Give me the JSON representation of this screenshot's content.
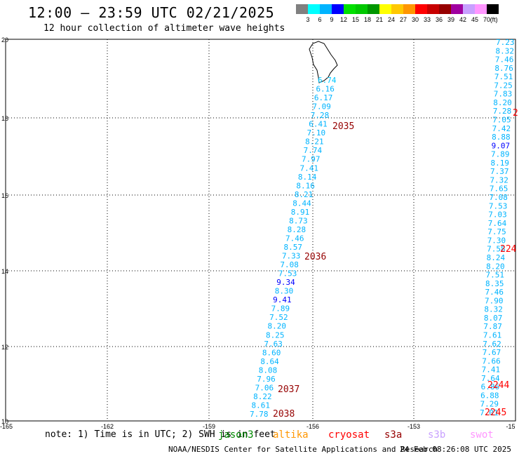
{
  "header": {
    "title": "12:00 – 23:59 UTC 02/21/2025",
    "subtitle": "12 hour collection of altimeter wave heights"
  },
  "colorbar": {
    "labels": [
      "3",
      "6",
      "9",
      "12",
      "15",
      "18",
      "21",
      "24",
      "27",
      "30",
      "33",
      "36",
      "39",
      "42",
      "45",
      "70"
    ],
    "unit": "(ft)",
    "colors": [
      "#808080",
      "#00ffff",
      "#00b4ff",
      "#0000ff",
      "#00e000",
      "#00c800",
      "#009600",
      "#ffff00",
      "#ffc800",
      "#ff9600",
      "#ff0000",
      "#c80000",
      "#960000",
      "#a000a0",
      "#c8a0ff",
      "#ff96ff",
      "#000000"
    ]
  },
  "axes": {
    "y_ticks": [
      "20",
      "18",
      "16",
      "14",
      "12",
      "10"
    ],
    "x_ticks": [
      "-165",
      "-162",
      "-159",
      "-156",
      "-153",
      "-15"
    ]
  },
  "tracks": [
    {
      "values": [
        "6.74",
        "6.16",
        "6.17",
        "7.09",
        "7.28",
        "6.41",
        "7.10",
        "8.21",
        "7.74",
        "7.97",
        "7.41",
        "8.14",
        "8.16",
        "8.21",
        "8.44",
        "8.91",
        "8.73",
        "8.28",
        "7.46",
        "8.57",
        "7.33",
        "7.08",
        "7.53",
        "9.34",
        "8.30",
        "9.41",
        "7.89",
        "7.52",
        "8.20",
        "8.25",
        "7.63",
        "8.60",
        "8.64",
        "8.08",
        "7.96",
        "7.06",
        "8.22",
        "8.61",
        "7.78"
      ],
      "colors": [
        "#00c8ff",
        "#00b4ff",
        "#00b4ff",
        "#00b4ff",
        "#00b4ff",
        "#00b4ff",
        "#00b4ff",
        "#00b4ff",
        "#00b4ff",
        "#00b4ff",
        "#00b4ff",
        "#00b4ff",
        "#00b4ff",
        "#00b4ff",
        "#00b4ff",
        "#00b4ff",
        "#00b4ff",
        "#00b4ff",
        "#00b4ff",
        "#00b4ff",
        "#00b4ff",
        "#00b4ff",
        "#00b4ff",
        "#0000ff",
        "#00b4ff",
        "#0000ff",
        "#00b4ff",
        "#00b4ff",
        "#00b4ff",
        "#00b4ff",
        "#00b4ff",
        "#00b4ff",
        "#00b4ff",
        "#00b4ff",
        "#00b4ff",
        "#00b4ff",
        "#00b4ff",
        "#00b4ff",
        "#00b4ff"
      ]
    },
    {
      "values": [
        "7.23",
        "8.32",
        "7.46",
        "8.76",
        "7.51",
        "7.25",
        "7.83",
        "8.20",
        "7.28",
        "7.05",
        "7.42",
        "8.88",
        "9.07",
        "7.89",
        "8.19",
        "7.37",
        "7.32",
        "7.65",
        "7.08",
        "7.53",
        "7.03",
        "7.64",
        "7.75",
        "7.30",
        "7.58",
        "8.24",
        "8.20",
        "7.51",
        "8.35",
        "7.46",
        "7.90",
        "8.32",
        "8.07",
        "7.87",
        "7.61",
        "7.62",
        "7.67",
        "7.66",
        "7.41",
        "7.64",
        "6.86",
        "6.88",
        "7.29",
        "7.01"
      ],
      "colors": [
        "#00b4ff",
        "#00b4ff",
        "#00b4ff",
        "#00b4ff",
        "#00b4ff",
        "#00b4ff",
        "#00b4ff",
        "#00b4ff",
        "#00b4ff",
        "#00b4ff",
        "#00b4ff",
        "#00b4ff",
        "#0000ff",
        "#00b4ff",
        "#00b4ff",
        "#00b4ff",
        "#00b4ff",
        "#00b4ff",
        "#00b4ff",
        "#00b4ff",
        "#00b4ff",
        "#00b4ff",
        "#00b4ff",
        "#00b4ff",
        "#00b4ff",
        "#00b4ff",
        "#00b4ff",
        "#00b4ff",
        "#00b4ff",
        "#00b4ff",
        "#00b4ff",
        "#00b4ff",
        "#00b4ff",
        "#00b4ff",
        "#00b4ff",
        "#00b4ff",
        "#00b4ff",
        "#00b4ff",
        "#00b4ff",
        "#00b4ff",
        "#00b4ff",
        "#00b4ff",
        "#00b4ff",
        "#00b4ff"
      ]
    }
  ],
  "time_labels": [
    {
      "text": "2035",
      "color": "#960000"
    },
    {
      "text": "2036",
      "color": "#960000"
    },
    {
      "text": "2037",
      "color": "#960000"
    },
    {
      "text": "2038",
      "color": "#960000"
    },
    {
      "text": "2",
      "color": "#ff0000"
    },
    {
      "text": "224",
      "color": "#ff0000"
    },
    {
      "text": "2244",
      "color": "#ff0000"
    },
    {
      "text": "2245",
      "color": "#ff0000"
    }
  ],
  "footer": {
    "note": "note: 1) Time is in UTC; 2) SWH is in feet",
    "legend": [
      {
        "name": "jason3",
        "color": "#008800"
      },
      {
        "name": "altika",
        "color": "#ff9600"
      },
      {
        "name": "cryosat",
        "color": "#ff0000"
      },
      {
        "name": "s3a",
        "color": "#960000"
      },
      {
        "name": "s3b",
        "color": "#c8a0ff"
      },
      {
        "name": "swot",
        "color": "#ff96ff"
      }
    ],
    "credit": "NOAA/NESDIS Center for Satellite Applications and Research",
    "timestamp": "24 Feb 08:26:08 UTC 2025"
  }
}
